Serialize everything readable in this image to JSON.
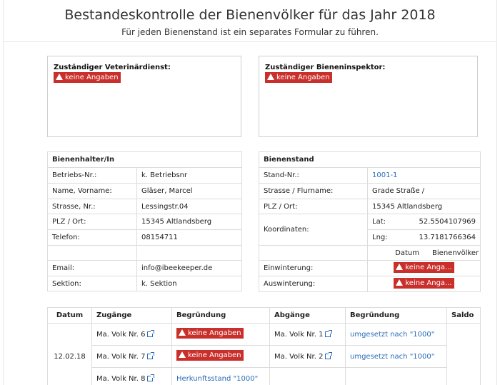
{
  "header": {
    "title": "Bestandeskontrolle der Bienenvölker für das Jahr 2018",
    "subtitle": "Für jeden Bienenstand ist ein separates Formular zu führen."
  },
  "veterinaer": {
    "title": "Zuständiger Veterinärdienst:",
    "badge": "keine Angaben"
  },
  "inspektor": {
    "title": "Zuständiger Bieneninspektor:",
    "badge": "keine Angaben"
  },
  "halter": {
    "heading": "Bienenhalter/In",
    "rows": [
      {
        "label": "Betriebs-Nr.:",
        "value": "k. Betriebsnr"
      },
      {
        "label": "Name, Vorname:",
        "value": "Gläser, Marcel"
      },
      {
        "label": "Strasse, Nr.:",
        "value": "Lessingstr.04"
      },
      {
        "label": "PLZ / Ort:",
        "value": "15345 Altlandsberg"
      },
      {
        "label": "Telefon:",
        "value": "08154711"
      },
      {
        "label": "",
        "value": ""
      },
      {
        "label": "Email:",
        "value": "info@ibeekeeper.de"
      },
      {
        "label": "Sektion:",
        "value": "k. Sektion"
      }
    ]
  },
  "stand": {
    "heading": "Bienenstand",
    "stand_nr_label": "Stand-Nr.:",
    "stand_nr": "1001-1",
    "strasse_label": "Strasse / Flurname:",
    "strasse": "Grade Straße /",
    "plz_label": "PLZ / Ort:",
    "plz": "15345 Altlandsberg",
    "koord_label": "Koordinaten:",
    "lat_label": "Lat:",
    "lat": "52.5504107969",
    "lng_label": "Lng:",
    "lng": "13.7181766364",
    "datum_header": "Datum",
    "voelker_header": "Bienenvölker",
    "einwinterung_label": "Einwinterung:",
    "einwinterung_badge": "keine Anga...",
    "auswinterung_label": "Auswinterung:",
    "auswinterung_badge": "keine Anga..."
  },
  "movements": {
    "headers": [
      "Datum",
      "Zugänge",
      "Begründung",
      "Abgänge",
      "Begründung",
      "Saldo"
    ],
    "date": "12.02.18",
    "rows": [
      {
        "zugang": "Ma. Volk Nr. 6",
        "zugang_grund": "keine Angaben",
        "abgang": "Ma. Volk Nr. 1",
        "abgang_grund": "umgesetzt nach \"1000\""
      },
      {
        "zugang": "Ma. Volk Nr. 7",
        "zugang_grund": "keine Angaben",
        "abgang": "Ma. Volk Nr. 2",
        "abgang_grund": "umgesetzt nach \"1000\""
      },
      {
        "zugang": "Ma. Volk Nr. 8",
        "zugang_grund": "Herkunftsstand \"1000\"",
        "abgang": "",
        "abgang_grund": ""
      }
    ]
  }
}
